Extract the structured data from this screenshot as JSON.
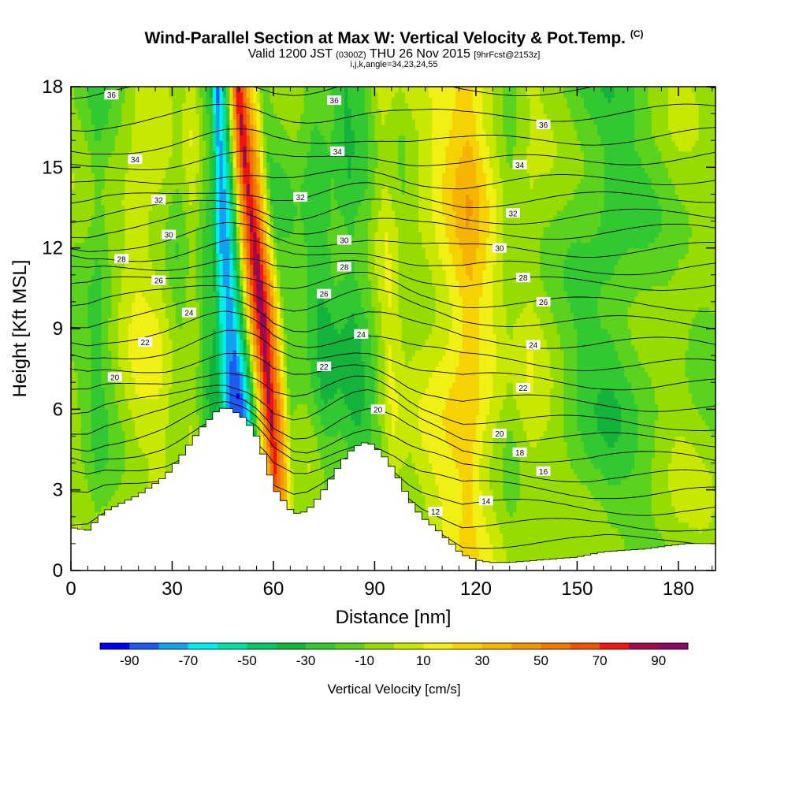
{
  "header": {
    "title": "Wind-Parallel Section at Max W: Vertical Velocity & Pot.Temp.",
    "copyright_mark": "(C)",
    "valid_prefix": "Valid 1200 JST",
    "valid_utc": "(0300Z)",
    "valid_date": "THU 26 Nov 2015",
    "forecast_info": "[9hrFcst@2153z]",
    "indices": "i,j,k,angle=34,23,24,55"
  },
  "chart_data": {
    "type": "heatmap",
    "title": "Wind-Parallel Section at Max W: Vertical Velocity & Pot.Temp.",
    "xlabel": "Distance [nm]",
    "ylabel": "Height [Kft MSL]",
    "xlim": [
      0,
      191
    ],
    "ylim": [
      0,
      18
    ],
    "x_ticks": [
      0,
      30,
      60,
      90,
      120,
      150,
      180
    ],
    "y_ticks": [
      0,
      3,
      6,
      9,
      12,
      15,
      18
    ],
    "grid": false,
    "colorbar": {
      "label": "Vertical Velocity [cm/s]",
      "placement": "bottom",
      "tick_labels": [
        -90,
        -70,
        -50,
        -30,
        -10,
        10,
        30,
        50,
        70,
        90
      ],
      "levels": [
        -100,
        -90,
        -80,
        -70,
        -60,
        -50,
        -40,
        -30,
        -20,
        -10,
        0,
        10,
        20,
        30,
        40,
        50,
        60,
        70,
        80,
        90,
        100
      ],
      "colors": [
        "#0000f0",
        "#1e5af0",
        "#14a0f0",
        "#00eeee",
        "#00e0a0",
        "#00c864",
        "#14b43c",
        "#32c832",
        "#5ad21e",
        "#96dc00",
        "#c8e800",
        "#f0f014",
        "#f5d200",
        "#f5b400",
        "#f09600",
        "#f07800",
        "#f05000",
        "#f01414",
        "#a00a46",
        "#8c0a64"
      ]
    },
    "terrain": {
      "x": [
        0,
        5,
        10,
        20,
        28,
        33,
        38,
        43,
        46,
        50,
        52,
        55,
        58,
        60,
        63,
        66,
        70,
        74,
        77,
        80,
        84,
        88,
        92,
        96,
        100,
        104,
        108,
        112,
        116,
        120,
        124,
        130,
        140,
        150,
        158,
        170,
        182,
        191
      ],
      "height_kft": [
        1.6,
        1.5,
        2.2,
        2.8,
        3.5,
        4.3,
        5.2,
        5.9,
        6.1,
        5.8,
        5.6,
        5.0,
        4.0,
        3.1,
        2.6,
        2.1,
        2.2,
        2.8,
        3.4,
        4.0,
        4.6,
        4.8,
        4.4,
        3.7,
        2.7,
        2.0,
        1.6,
        1.1,
        0.6,
        0.4,
        0.3,
        0.3,
        0.4,
        0.5,
        0.7,
        0.8,
        1.0,
        1.0
      ]
    },
    "velocity_columns": {
      "x": [
        0,
        4,
        8,
        14,
        20,
        26,
        32,
        36,
        40,
        44,
        47,
        50,
        53,
        56,
        59,
        62,
        65,
        70,
        75,
        80,
        85,
        90,
        95,
        100,
        106,
        112,
        118,
        124,
        130,
        136,
        142,
        150,
        160,
        170,
        180,
        191
      ],
      "w_cm_s": [
        -8,
        -12,
        -22,
        -5,
        8,
        5,
        -12,
        2,
        -22,
        -30,
        -68,
        -82,
        -50,
        30,
        88,
        40,
        -15,
        -12,
        -28,
        -22,
        -30,
        -18,
        8,
        -5,
        5,
        18,
        32,
        12,
        -8,
        2,
        -5,
        -18,
        -25,
        -15,
        -5,
        -10
      ],
      "tilt_nm_per_kft": [
        0,
        0,
        0,
        0,
        0,
        0,
        0,
        0,
        0,
        -0.6,
        -0.7,
        -0.8,
        -0.8,
        -0.7,
        -0.7,
        -0.6,
        -0.4,
        -0.3,
        -0.3,
        -0.3,
        -0.3,
        -0.3,
        -0.2,
        -0.2,
        0,
        0,
        0,
        0,
        0,
        0,
        0,
        0,
        0,
        0,
        0,
        0
      ]
    },
    "theta_contours": {
      "levels": [
        12,
        13,
        14,
        15,
        16,
        17,
        18,
        19,
        20,
        21,
        22,
        23,
        24,
        25,
        26,
        27,
        28,
        29,
        30,
        31,
        32,
        33,
        34,
        35,
        36
      ],
      "left_height_kft": [
        1.2,
        2.3,
        3.1,
        3.8,
        4.4,
        5.0,
        5.6,
        6.3,
        7.0,
        7.7,
        8.4,
        9.1,
        9.8,
        10.4,
        10.9,
        11.4,
        11.9,
        12.5,
        13.0,
        13.5,
        14.1,
        14.8,
        15.5,
        16.5,
        17.7
      ],
      "right_height_kft": [
        1.0,
        1.5,
        2.1,
        2.7,
        3.3,
        4.0,
        4.7,
        5.3,
        6.0,
        6.8,
        7.5,
        8.3,
        9.1,
        9.8,
        10.6,
        11.2,
        11.9,
        12.6,
        13.2,
        13.9,
        14.6,
        15.4,
        16.2,
        17.1,
        18.0
      ],
      "labeled": [
        {
          "level": 36,
          "x": 12,
          "y": 17.7
        },
        {
          "level": 34,
          "x": 19,
          "y": 15.3
        },
        {
          "level": 32,
          "x": 26,
          "y": 13.8
        },
        {
          "level": 30,
          "x": 29,
          "y": 12.5
        },
        {
          "level": 28,
          "x": 15,
          "y": 11.6
        },
        {
          "level": 26,
          "x": 26,
          "y": 10.8
        },
        {
          "level": 24,
          "x": 35,
          "y": 9.6
        },
        {
          "level": 22,
          "x": 22,
          "y": 8.5
        },
        {
          "level": 20,
          "x": 13,
          "y": 7.2
        },
        {
          "level": 36,
          "x": 78,
          "y": 17.5
        },
        {
          "level": 34,
          "x": 79,
          "y": 15.6
        },
        {
          "level": 32,
          "x": 68,
          "y": 13.9
        },
        {
          "level": 30,
          "x": 81,
          "y": 12.3
        },
        {
          "level": 28,
          "x": 81,
          "y": 11.3
        },
        {
          "level": 26,
          "x": 75,
          "y": 10.3
        },
        {
          "level": 24,
          "x": 86,
          "y": 8.8
        },
        {
          "level": 22,
          "x": 75,
          "y": 7.6
        },
        {
          "level": 20,
          "x": 91,
          "y": 6.0
        },
        {
          "level": 36,
          "x": 140,
          "y": 16.6
        },
        {
          "level": 34,
          "x": 133,
          "y": 15.1
        },
        {
          "level": 32,
          "x": 131,
          "y": 13.3
        },
        {
          "level": 30,
          "x": 127,
          "y": 12.0
        },
        {
          "level": 28,
          "x": 134,
          "y": 10.9
        },
        {
          "level": 26,
          "x": 140,
          "y": 10.0
        },
        {
          "level": 24,
          "x": 137,
          "y": 8.4
        },
        {
          "level": 22,
          "x": 134,
          "y": 6.8
        },
        {
          "level": 20,
          "x": 127,
          "y": 5.1
        },
        {
          "level": 18,
          "x": 133,
          "y": 4.4
        },
        {
          "level": 16,
          "x": 140,
          "y": 3.7
        },
        {
          "level": 14,
          "x": 123,
          "y": 2.6
        },
        {
          "level": 12,
          "x": 108,
          "y": 2.2
        }
      ]
    }
  }
}
